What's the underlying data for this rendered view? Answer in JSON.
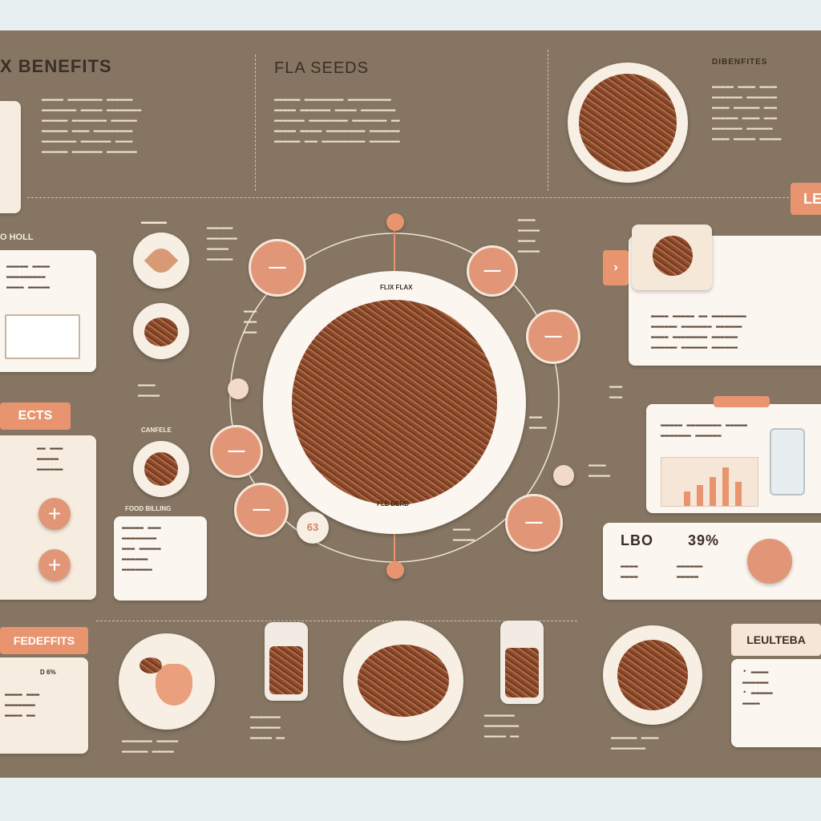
{
  "header": {
    "title_left": "X  BENEFITS",
    "title_mid": "FLA   SEEDS",
    "title_right": "DIBENFITES"
  },
  "left": {
    "box_heading": "O HOLL",
    "effects_tab": "ECTS",
    "stat_label": "CANFELE",
    "food_label": "FOOD BILLING"
  },
  "center": {
    "ring_top_label": "FLIX FLAX",
    "ring_bottom_label": "FLE BERD",
    "badge_number": "63"
  },
  "right": {
    "tab_label": "LEI",
    "stat1_value": "LBO",
    "stat2_value": "39%"
  },
  "bottom": {
    "left_tab": "FEDEFFITS",
    "left_item": "D 6%",
    "right_tab": "LEULTEBA"
  },
  "colors": {
    "board": "#857562",
    "accent": "#e8956f",
    "card": "#f6ecdf",
    "seed": "#9a5535"
  },
  "icons": [
    "leaf-icon",
    "dna-icon",
    "plus-icon",
    "arrow-icon",
    "bottle-icon",
    "hand-icon"
  ]
}
